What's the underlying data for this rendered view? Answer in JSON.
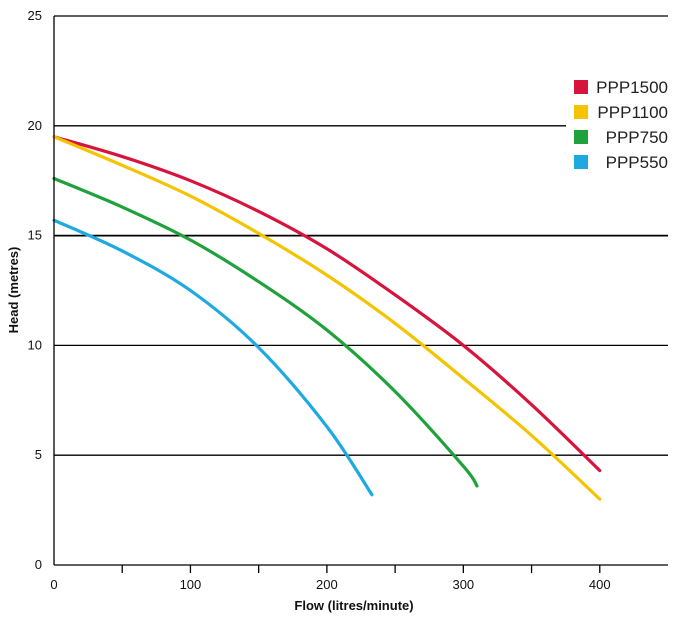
{
  "chart_data": {
    "type": "line",
    "title": "",
    "xlabel": "Flow (litres/minute)",
    "ylabel": "Head (metres)",
    "xlim": [
      0,
      450
    ],
    "ylim": [
      0,
      25
    ],
    "x_tick_labels": [
      "0",
      "100",
      "200",
      "300",
      "400"
    ],
    "x_tick_values": [
      0,
      100,
      200,
      300,
      400
    ],
    "x_minor_ticks": [
      50,
      150,
      250,
      350
    ],
    "y_tick_labels": [
      "0",
      "5",
      "10",
      "15",
      "20",
      "25"
    ],
    "y_tick_values": [
      0,
      5,
      10,
      15,
      20,
      25
    ],
    "grid": "horizontal",
    "legend_position": "top-right",
    "series": [
      {
        "name": "PPP1500",
        "color": "#d7143c",
        "x": [
          0,
          50,
          100,
          150,
          200,
          250,
          300,
          350,
          400
        ],
        "y": [
          19.5,
          18.6,
          17.5,
          16.1,
          14.4,
          12.3,
          10.0,
          7.3,
          4.3
        ]
      },
      {
        "name": "PPP1100",
        "color": "#f5c400",
        "x": [
          0,
          50,
          100,
          150,
          200,
          250,
          300,
          350,
          400
        ],
        "y": [
          19.5,
          18.2,
          16.8,
          15.1,
          13.2,
          11.0,
          8.5,
          5.9,
          3.0
        ]
      },
      {
        "name": "PPP750",
        "color": "#1fa23c",
        "x": [
          0,
          50,
          100,
          150,
          200,
          250,
          300,
          310
        ],
        "y": [
          17.6,
          16.3,
          14.8,
          12.9,
          10.7,
          7.9,
          4.5,
          3.6
        ]
      },
      {
        "name": "PPP550",
        "color": "#1ea9e1",
        "x": [
          0,
          50,
          100,
          150,
          200,
          233
        ],
        "y": [
          15.7,
          14.3,
          12.5,
          9.9,
          6.3,
          3.2
        ]
      }
    ]
  }
}
